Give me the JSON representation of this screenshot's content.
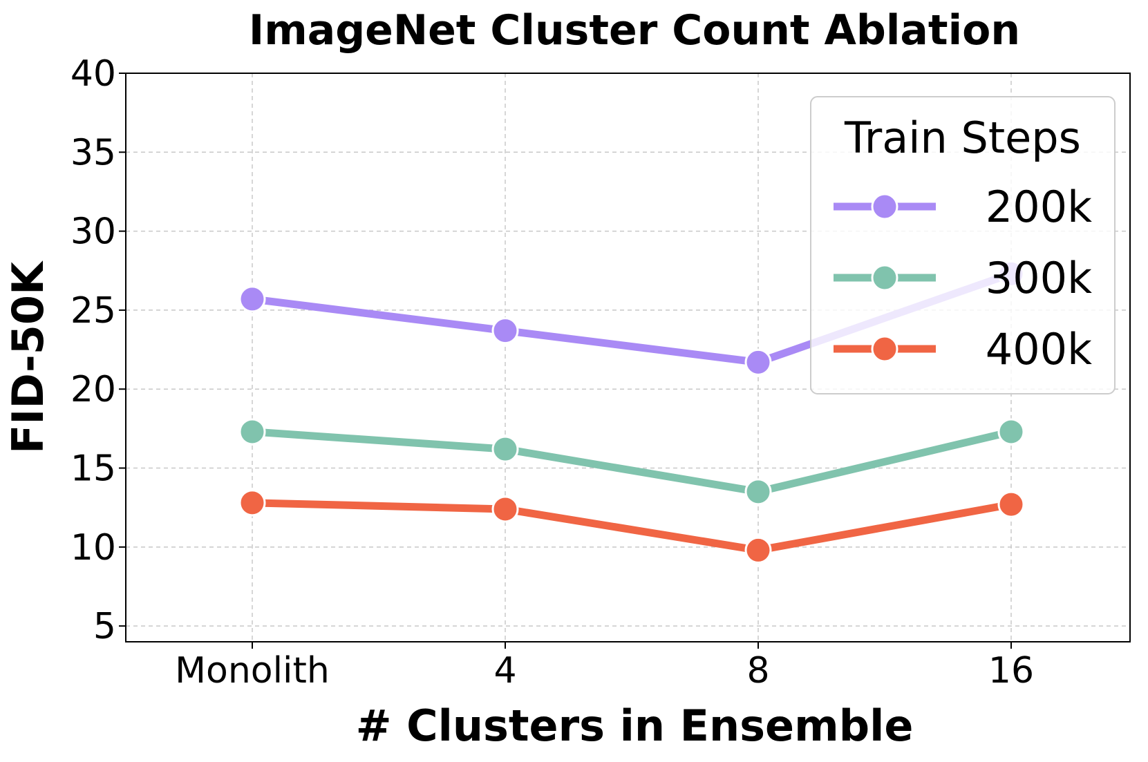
{
  "chart_data": {
    "type": "line",
    "title": "ImageNet Cluster Count Ablation",
    "xlabel": "# Clusters in Ensemble",
    "ylabel": "FID-50K",
    "categories": [
      "Monolith",
      "4",
      "8",
      "16"
    ],
    "ylim": [
      4,
      40
    ],
    "yticks": [
      5,
      10,
      15,
      20,
      25,
      30,
      35,
      40
    ],
    "grid": true,
    "legend": {
      "title": "Train Steps",
      "placement": "top-right"
    },
    "series": [
      {
        "name": "200k",
        "color": "#a98af5",
        "values": [
          25.7,
          23.7,
          21.7,
          27.3
        ]
      },
      {
        "name": "300k",
        "color": "#80c3ad",
        "values": [
          17.3,
          16.2,
          13.5,
          17.3
        ]
      },
      {
        "name": "400k",
        "color": "#f06544",
        "values": [
          12.8,
          12.4,
          9.8,
          12.7
        ]
      }
    ]
  }
}
